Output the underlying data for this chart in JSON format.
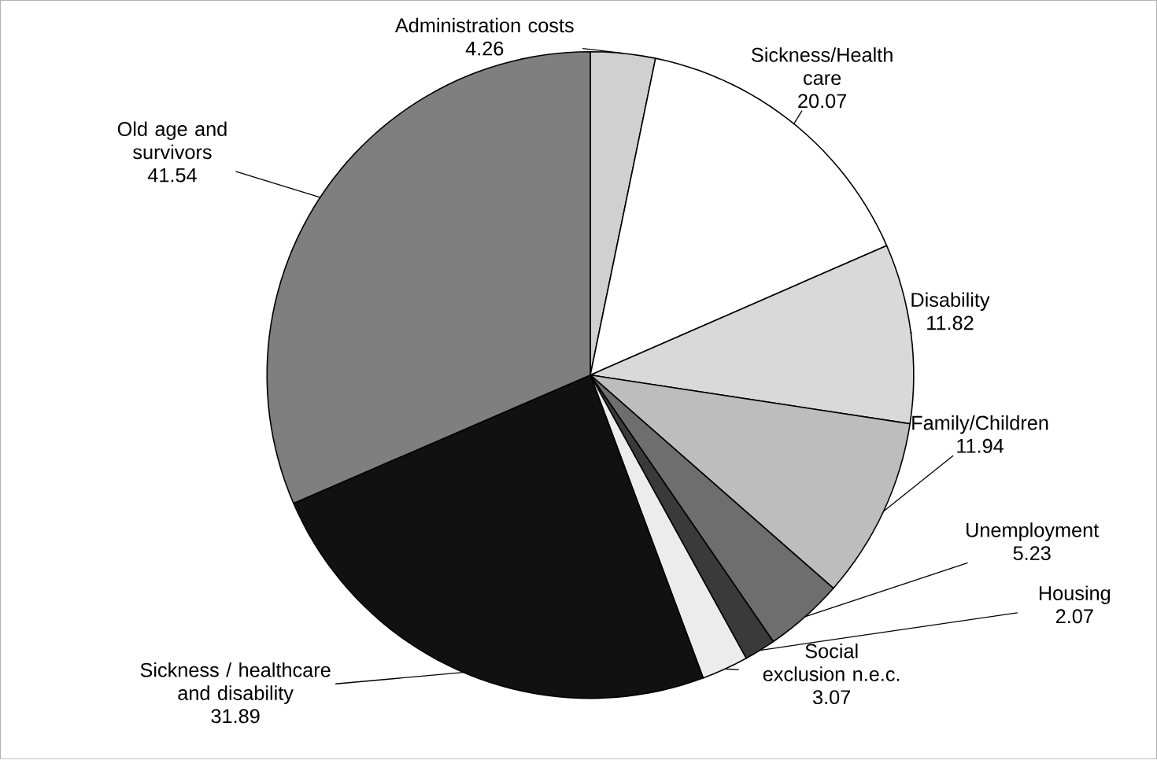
{
  "chart_data": {
    "type": "pie",
    "data_labels": true,
    "categories": [
      "Administration costs",
      "Sickness/Health care",
      "Disability",
      "Family/Children",
      "Unemployment",
      "Housing",
      "Social exclusion n.e.c.",
      "Sickness / healthcare and disability",
      "Old age and survivors"
    ],
    "values": [
      4.26,
      20.07,
      11.82,
      11.94,
      5.23,
      2.07,
      3.07,
      31.89,
      41.54
    ],
    "colors": [
      "#d0d0d0",
      "#ffffff",
      "#d9d9d9",
      "#bdbdbd",
      "#6e6e6e",
      "#3a3a3a",
      "#ececec",
      "#111111",
      "#7f7f7f"
    ]
  }
}
